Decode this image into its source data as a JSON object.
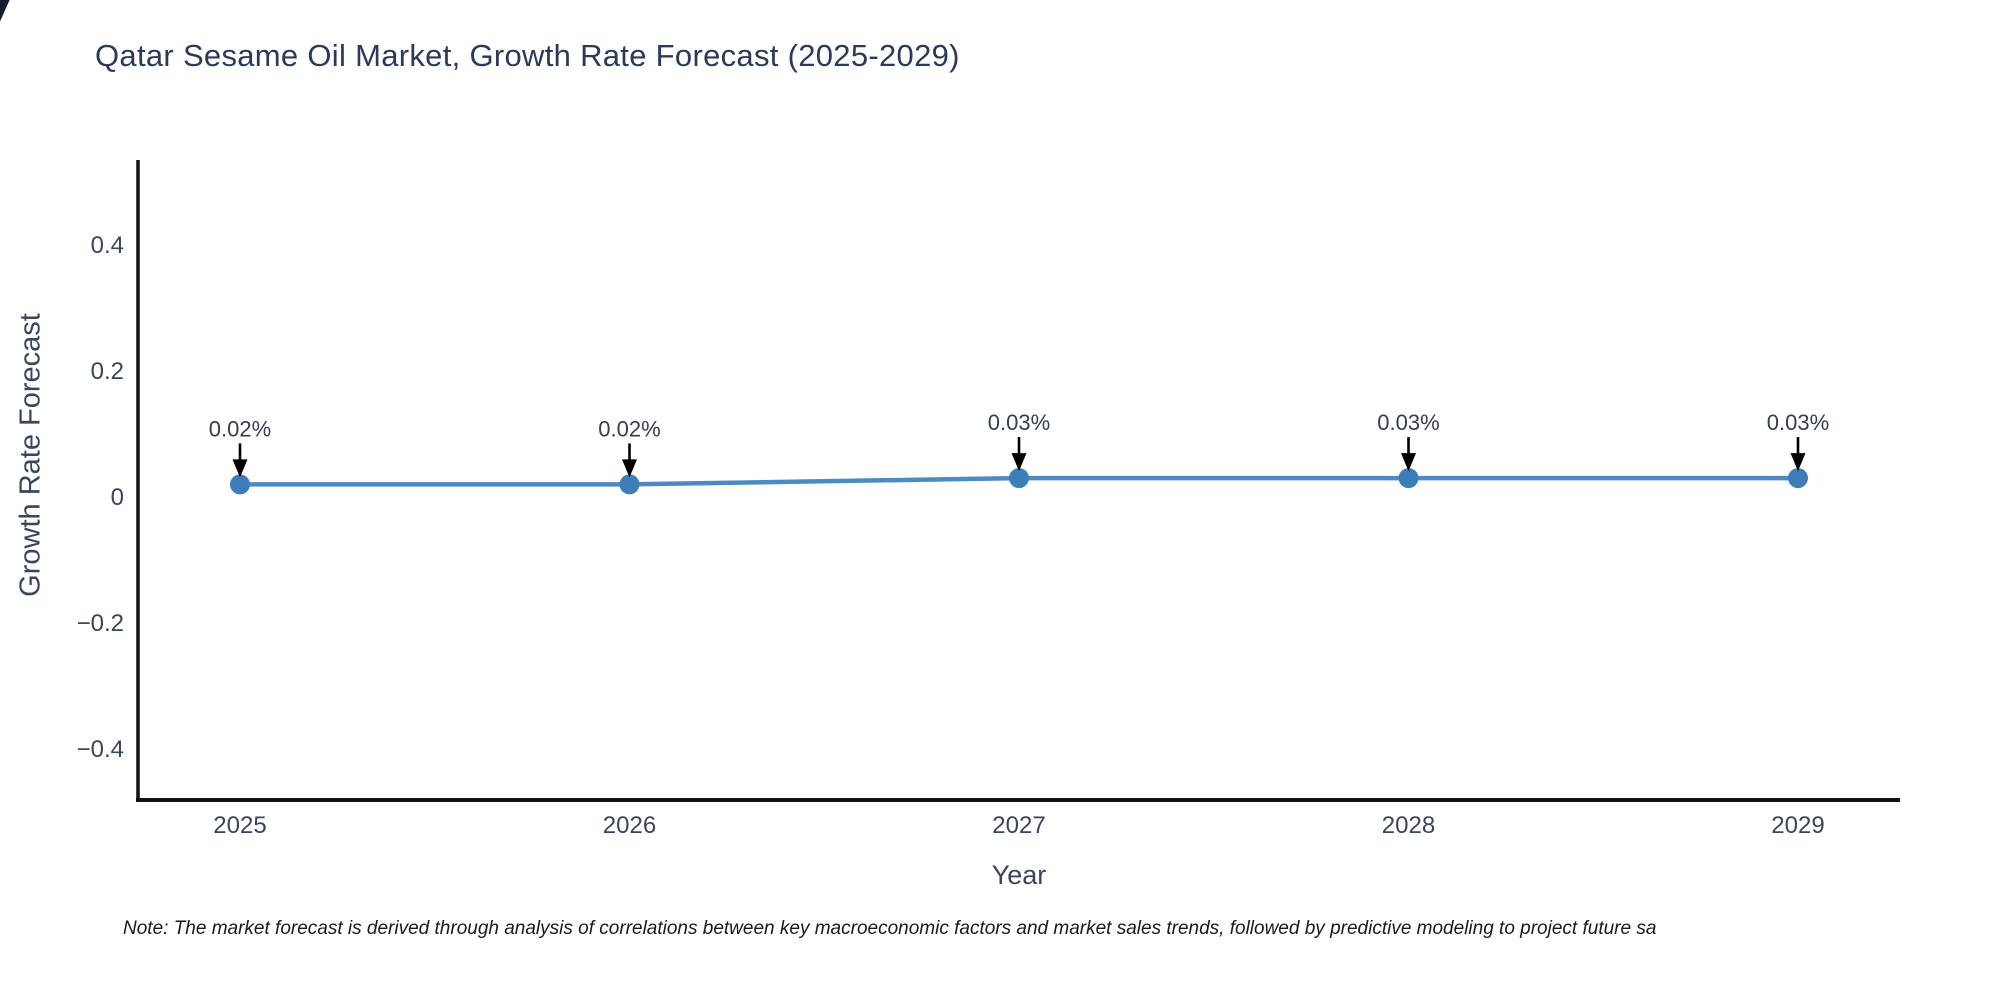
{
  "title": "Qatar Sesame Oil Market, Growth Rate Forecast (2025-2029)",
  "note": "Note: The market forecast is derived through analysis of correlations between key macroeconomic factors and market sales trends, followed by predictive modeling to project future sa",
  "chart_data": {
    "type": "line",
    "title": "Qatar Sesame Oil Market, Growth Rate Forecast (2025-2029)",
    "xlabel": "Year",
    "ylabel": "Growth Rate Forecast",
    "x": [
      2025,
      2026,
      2027,
      2028,
      2029
    ],
    "values": [
      0.02,
      0.02,
      0.03,
      0.03,
      0.03
    ],
    "point_labels": [
      "0.02%",
      "0.02%",
      "0.03%",
      "0.03%",
      "0.03%"
    ],
    "x_tick_labels": [
      "2025",
      "2026",
      "2027",
      "2028",
      "2029"
    ],
    "y_ticks": [
      0.4,
      0.2,
      0,
      -0.2,
      -0.4
    ],
    "y_tick_labels": [
      "0.4",
      "0.2",
      "0",
      "−0.2",
      "−0.4"
    ],
    "ylim": [
      -0.508,
      0.508
    ],
    "xlim": [
      2024.74,
      2029.26
    ],
    "grid": false,
    "legend": "none",
    "colors": {
      "line": "#4e8ac2",
      "marker": "#3e7eb8",
      "axis_spine": "#111111",
      "title_text": "#2b3a5c",
      "axis_text": "#3a4659",
      "annotation_text": "#323e52",
      "arrow": "#000000",
      "note_text": "#1a1a1a",
      "background": "#ffffff"
    }
  }
}
